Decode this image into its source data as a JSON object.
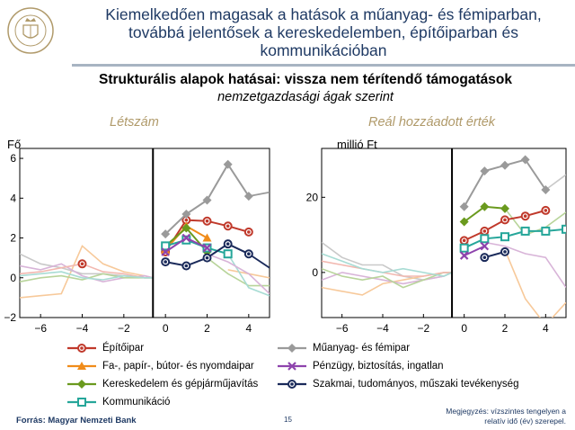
{
  "slide": {
    "title_lines": [
      "Kiemelkedően magasak a hatások a műanyag- és fémiparban,",
      "továbbá jelentősek a kereskedelemben, építőiparban és",
      "kommunikációban"
    ],
    "subtitle": "Strukturális alapok hatásai: vissza nem térítendő támogatások",
    "subtitle2": "nemzetgazdasági ágak szerint",
    "source": "Forrás: Magyar Nemzeti Bank",
    "page_number": "15",
    "note_lines": [
      "Megjegyzés: vízszintes tengelyen a",
      "relatív idő (év) szerepel."
    ],
    "logo_text": "MAGYAR NEMZETI BANK"
  },
  "chart_data": [
    {
      "type": "line",
      "title": "Létszám",
      "ylabel": "Fő",
      "ylim": [
        -2,
        6.5
      ],
      "xlim": [
        -7,
        5
      ],
      "yticks": [
        -2,
        0,
        2,
        4,
        6
      ],
      "ytick_labels": [
        "−2",
        "0",
        "2",
        "4",
        "6"
      ],
      "xticks": [
        -6,
        -4,
        -2,
        0,
        2,
        4
      ],
      "xtick_labels": [
        "−6",
        "−4",
        "−2",
        "0",
        "2",
        "4"
      ],
      "event_line_x": -0.6,
      "background_series": [
        {
          "color": "#f7c99a",
          "x": [
            -7,
            -6,
            -5,
            -4,
            -3,
            -2,
            -1,
            -0.6
          ],
          "y": [
            -1.0,
            -0.9,
            -0.8,
            1.6,
            0.7,
            0.3,
            0.1,
            0
          ]
        },
        {
          "color": "#c9c9c9",
          "x": [
            -7,
            -6,
            -5,
            -4,
            -3,
            -2,
            -1,
            -0.6
          ],
          "y": [
            1.2,
            0.7,
            0.5,
            0.2,
            0.2,
            0.1,
            0.0,
            0
          ]
        },
        {
          "color": "#d8b4d8",
          "x": [
            -7,
            -6,
            -5,
            -4,
            -3,
            -2,
            -1,
            -0.6
          ],
          "y": [
            0.6,
            0.4,
            0.7,
            0.1,
            -0.2,
            0.0,
            0.1,
            0
          ]
        },
        {
          "color": "#f2b8b0",
          "x": [
            -7,
            -6,
            -5,
            -4,
            -3,
            -2,
            -1,
            -0.6
          ],
          "y": [
            0.2,
            0.3,
            0.5,
            0.7,
            0.3,
            0.2,
            0.0,
            0
          ]
        },
        {
          "color": "#b8d49a",
          "x": [
            -7,
            -6,
            -5,
            -4,
            -3,
            -2,
            -1,
            -0.6
          ],
          "y": [
            -0.2,
            0.0,
            0.1,
            -0.1,
            0.2,
            0.0,
            0.0,
            0
          ]
        },
        {
          "color": "#a8dcd4",
          "x": [
            -7,
            -6,
            -5,
            -4,
            -3,
            -2,
            -1,
            -0.6
          ],
          "y": [
            0.1,
            0.2,
            0.3,
            0.0,
            -0.1,
            0.1,
            0.0,
            0
          ]
        },
        {
          "color": "#f7c99a",
          "x": [
            3,
            4,
            5
          ],
          "y": [
            0.4,
            0.2,
            0.0
          ]
        },
        {
          "color": "#b8d49a",
          "x": [
            2,
            3,
            4,
            5
          ],
          "y": [
            1.0,
            0.2,
            -0.4,
            -0.4
          ]
        },
        {
          "color": "#a8dcd4",
          "x": [
            3,
            4,
            5
          ],
          "y": [
            1.2,
            -0.5,
            -0.9
          ]
        },
        {
          "color": "#d8b4d8",
          "x": [
            2,
            3,
            4,
            5
          ],
          "y": [
            1.2,
            0.8,
            0.2,
            -0.8
          ]
        }
      ],
      "series": [
        {
          "name": "Építőipar",
          "color": "#c0392b",
          "marker": "circle",
          "x": [
            0,
            1,
            2,
            3,
            4
          ],
          "y": [
            1.3,
            2.9,
            2.85,
            2.6,
            2.3
          ]
        },
        {
          "name": "Fa-, papír-, bútor- és nyomdaipar",
          "color": "#f08c1a",
          "marker": "triangle",
          "x": [
            0,
            1,
            2
          ],
          "y": [
            1.4,
            2.6,
            2.0
          ]
        },
        {
          "name": "Kereskedelem és gépjárműjavítás",
          "color": "#6a9a1e",
          "marker": "diamond",
          "x": [
            0,
            1,
            2
          ],
          "y": [
            1.6,
            2.5,
            1.3
          ]
        },
        {
          "name": "Kommunikáció",
          "color": "#26a69a",
          "marker": "square",
          "x": [
            0,
            1,
            2,
            3
          ],
          "y": [
            1.6,
            1.9,
            1.5,
            1.2
          ]
        },
        {
          "name": "Műanyag- és fémipar",
          "color": "#9a9a9a",
          "marker": "diamond",
          "x": [
            0,
            1,
            2,
            3,
            4
          ],
          "y": [
            2.2,
            3.2,
            3.9,
            5.7,
            4.1
          ]
        },
        {
          "name": "Pénzügy, biztosítás, ingatlan",
          "color": "#8e44ad",
          "marker": "x",
          "x": [
            0,
            1,
            2
          ],
          "y": [
            1.3,
            2.0,
            1.5
          ]
        },
        {
          "name": "Szakmai, tudományos, műszaki tevékenység",
          "color": "#1a2a5a",
          "marker": "circle",
          "x": [
            0,
            1,
            2,
            3,
            4
          ],
          "y": [
            0.8,
            0.6,
            1.0,
            1.7,
            1.2
          ]
        }
      ],
      "extra_segments": [
        {
          "color": "#c0392b",
          "marker": "circle",
          "x": [
            -4
          ],
          "y": [
            0.7
          ]
        },
        {
          "color": "#9a9a9a",
          "marker": "none",
          "x": [
            4,
            5
          ],
          "y": [
            4.1,
            4.3
          ]
        },
        {
          "color": "#1a2a5a",
          "marker": "none",
          "x": [
            4,
            5
          ],
          "y": [
            1.2,
            0.5
          ]
        }
      ]
    },
    {
      "type": "line",
      "title": "Reál hozzáadott érték",
      "ylabel": "millió Ft",
      "ylim": [
        -12,
        33
      ],
      "xlim": [
        -7,
        5
      ],
      "yticks": [
        0,
        20
      ],
      "ytick_labels": [
        "0",
        "20"
      ],
      "xticks": [
        -6,
        -4,
        -2,
        0,
        2,
        4
      ],
      "xtick_labels": [
        "−6",
        "−4",
        "−2",
        "0",
        "2",
        "4"
      ],
      "event_line_x": -0.6,
      "background_series": [
        {
          "color": "#c9c9c9",
          "x": [
            -7,
            -6,
            -5,
            -4,
            -3,
            -2,
            -1,
            -0.6
          ],
          "y": [
            8,
            4,
            2,
            2,
            -1,
            -2,
            -1,
            0
          ]
        },
        {
          "color": "#f7c99a",
          "x": [
            -7,
            -6,
            -5,
            -4,
            -3,
            -2,
            -1,
            -0.6
          ],
          "y": [
            -4,
            -5,
            -6,
            -3,
            -2,
            -1,
            0,
            0
          ]
        },
        {
          "color": "#d8b4d8",
          "x": [
            -7,
            -6,
            -5,
            -4,
            -3,
            -2,
            -1,
            -0.6
          ],
          "y": [
            -2,
            0,
            -1,
            -2,
            -3,
            -2,
            -1,
            0
          ]
        },
        {
          "color": "#b8d49a",
          "x": [
            -7,
            -6,
            -5,
            -4,
            -3,
            -2,
            -1,
            -0.6
          ],
          "y": [
            1,
            -1,
            -2,
            -1,
            -4,
            -2,
            0,
            0
          ]
        },
        {
          "color": "#f2b8b0",
          "x": [
            -7,
            -6,
            -5,
            -4,
            -3,
            -2,
            -1,
            -0.6
          ],
          "y": [
            3,
            2,
            1,
            0,
            -1,
            -1,
            0,
            0
          ]
        },
        {
          "color": "#a8dcd4",
          "x": [
            -7,
            -6,
            -5,
            -4,
            -3,
            -2,
            -1,
            -0.6
          ],
          "y": [
            5,
            3,
            1,
            0,
            1,
            0,
            -1,
            0
          ]
        },
        {
          "color": "#f7c99a",
          "x": [
            2,
            3,
            4,
            5
          ],
          "y": [
            6,
            -7,
            -14,
            -8
          ]
        },
        {
          "color": "#b8d49a",
          "x": [
            2,
            3,
            4,
            5
          ],
          "y": [
            17,
            10,
            12,
            16
          ]
        },
        {
          "color": "#d8b4d8",
          "x": [
            1,
            2,
            3,
            4,
            5
          ],
          "y": [
            8,
            7,
            5,
            4,
            -4
          ]
        },
        {
          "color": "#c9c9c9",
          "x": [
            4,
            5
          ],
          "y": [
            22,
            26
          ]
        }
      ],
      "series": [
        {
          "name": "Építőipar",
          "color": "#c0392b",
          "marker": "circle",
          "x": [
            0,
            1,
            2,
            3,
            4
          ],
          "y": [
            8.5,
            11,
            14,
            15,
            16.5
          ]
        },
        {
          "name": "Kereskedelem és gépjárműjavítás",
          "color": "#6a9a1e",
          "marker": "diamond",
          "x": [
            0,
            1,
            2
          ],
          "y": [
            13.5,
            17.5,
            17
          ]
        },
        {
          "name": "Kommunikáció",
          "color": "#26a69a",
          "marker": "square",
          "x": [
            0,
            1,
            2,
            3,
            4,
            5
          ],
          "y": [
            6.5,
            9,
            9.5,
            11,
            11,
            11.5
          ]
        },
        {
          "name": "Műanyag- és fémipar",
          "color": "#9a9a9a",
          "marker": "diamond",
          "x": [
            0,
            1,
            2,
            3,
            4
          ],
          "y": [
            17.5,
            27,
            28.5,
            30,
            22
          ]
        },
        {
          "name": "Pénzügy, biztosítás, ingatlan",
          "color": "#8e44ad",
          "marker": "x",
          "x": [
            0,
            1
          ],
          "y": [
            4.5,
            7
          ]
        },
        {
          "name": "Szakmai, tudományos, műszaki tevékenység",
          "color": "#1a2a5a",
          "marker": "circle",
          "x": [
            1,
            2
          ],
          "y": [
            4,
            5.5
          ]
        }
      ]
    }
  ],
  "legend": [
    {
      "label": "Építőipar",
      "color": "#c0392b",
      "marker": "circle"
    },
    {
      "label": "Műanyag- és fémipar",
      "color": "#9a9a9a",
      "marker": "diamond"
    },
    {
      "label": "Fa-, papír-, bútor- és nyomdaipar",
      "color": "#f08c1a",
      "marker": "triangle"
    },
    {
      "label": "Pénzügy, biztosítás, ingatlan",
      "color": "#8e44ad",
      "marker": "x"
    },
    {
      "label": "Kereskedelem és gépjárműjavítás",
      "color": "#6a9a1e",
      "marker": "diamond"
    },
    {
      "label": "Szakmai, tudományos, műszaki tevékenység",
      "color": "#1a2a5a",
      "marker": "circle"
    },
    {
      "label": "Kommunikáció",
      "color": "#26a69a",
      "marker": "square"
    }
  ]
}
